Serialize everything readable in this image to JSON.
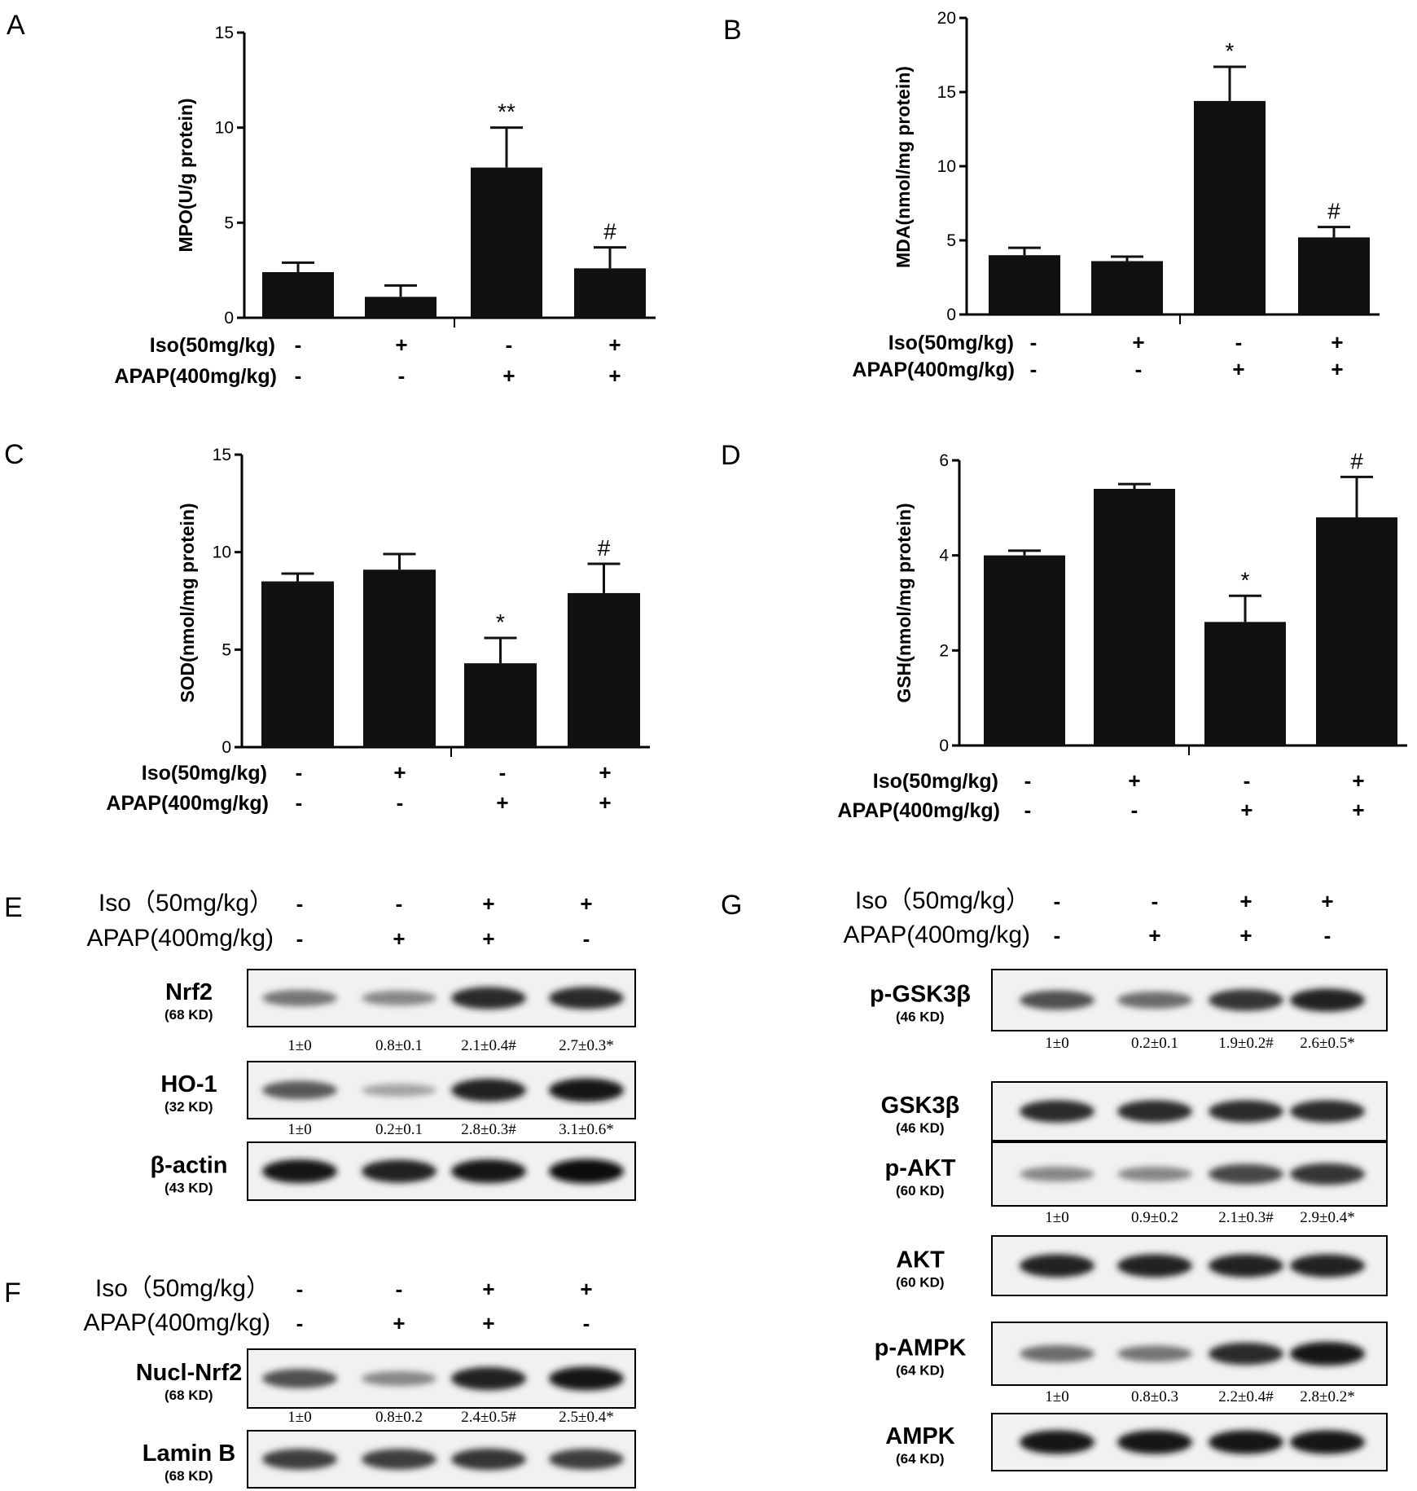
{
  "chart_data": [
    {
      "panel": "A",
      "type": "bar",
      "ylabel": "MPO(U/g protein)",
      "ylim": [
        0,
        15
      ],
      "yticks": [
        0,
        5,
        10,
        15
      ],
      "values": [
        2.4,
        1.1,
        7.9,
        2.6
      ],
      "errors": [
        0.5,
        0.6,
        2.1,
        1.1
      ],
      "sig": [
        "",
        "",
        "**",
        "#"
      ],
      "iso_label": "Iso(50mg/kg)",
      "iso": [
        "-",
        "+",
        "-",
        "+"
      ],
      "apap_label": "APAP(400mg/kg)",
      "apap": [
        "-",
        "-",
        "+",
        "+"
      ]
    },
    {
      "panel": "B",
      "type": "bar",
      "ylabel": "MDA(nmol/mg protein)",
      "ylim": [
        0,
        20
      ],
      "yticks": [
        0,
        5,
        10,
        15,
        20
      ],
      "values": [
        4.0,
        3.6,
        14.4,
        5.2
      ],
      "errors": [
        0.5,
        0.3,
        2.3,
        0.7
      ],
      "sig": [
        "",
        "",
        "*",
        "#"
      ],
      "iso_label": "Iso(50mg/kg)",
      "iso": [
        "-",
        "+",
        "-",
        "+"
      ],
      "apap_label": "APAP(400mg/kg)",
      "apap": [
        "-",
        "-",
        "+",
        "+"
      ]
    },
    {
      "panel": "C",
      "type": "bar",
      "ylabel": "SOD(nmol/mg protein)",
      "ylim": [
        0,
        15
      ],
      "yticks": [
        0,
        5,
        10,
        15
      ],
      "values": [
        8.5,
        9.1,
        4.3,
        7.9
      ],
      "errors": [
        0.4,
        0.8,
        1.3,
        1.5
      ],
      "sig": [
        "",
        "",
        "*",
        "#"
      ],
      "iso_label": "Iso(50mg/kg)",
      "iso": [
        "-",
        "+",
        "-",
        "+"
      ],
      "apap_label": "APAP(400mg/kg)",
      "apap": [
        "-",
        "-",
        "+",
        "+"
      ]
    },
    {
      "panel": "D",
      "type": "bar",
      "ylabel": "GSH(nmol/mg protein)",
      "ylim": [
        0,
        6
      ],
      "yticks": [
        0,
        2,
        4,
        6
      ],
      "values": [
        4.0,
        5.4,
        2.6,
        4.8
      ],
      "errors": [
        0.1,
        0.1,
        0.55,
        0.85
      ],
      "sig": [
        "",
        "",
        "*",
        "#"
      ],
      "iso_label": "Iso(50mg/kg)",
      "iso": [
        "-",
        "+",
        "-",
        "+"
      ],
      "apap_label": "APAP(400mg/kg)",
      "apap": [
        "-",
        "-",
        "+",
        "+"
      ]
    }
  ],
  "western_blots": [
    {
      "panel": "E",
      "iso_label": "Iso（50mg/kg）",
      "iso": [
        "-",
        "-",
        "+",
        "+"
      ],
      "apap_label": "APAP(400mg/kg)",
      "apap": [
        "-",
        "+",
        "+",
        "-"
      ],
      "blots": [
        {
          "name": "Nrf2",
          "kd": "(68 KD)",
          "values": [
            "1±0",
            "0.8±0.1",
            "2.1±0.4#",
            "2.7±0.3*"
          ],
          "intensity": [
            0.45,
            0.35,
            0.85,
            0.85
          ]
        },
        {
          "name": "HO-1",
          "kd": "(32 KD)",
          "values": [
            "1±0",
            "0.2±0.1",
            "2.8±0.3#",
            "3.1±0.6*"
          ],
          "intensity": [
            0.6,
            0.2,
            0.9,
            0.95
          ]
        },
        {
          "name": "β-actin",
          "kd": "(43 KD)",
          "values": [],
          "intensity": [
            0.95,
            0.9,
            0.95,
            1.0
          ]
        }
      ]
    },
    {
      "panel": "F",
      "iso_label": "Iso（50mg/kg）",
      "iso": [
        "-",
        "-",
        "+",
        "+"
      ],
      "apap_label": "APAP(400mg/kg)",
      "apap": [
        "-",
        "+",
        "+",
        "-"
      ],
      "blots": [
        {
          "name": "Nucl-Nrf2",
          "kd": "(68 KD)",
          "values": [
            "1±0",
            "0.8±0.2",
            "2.4±0.5#",
            "2.5±0.4*"
          ],
          "intensity": [
            0.65,
            0.35,
            0.9,
            0.95
          ]
        },
        {
          "name": "Lamin B",
          "kd": "(68 KD)",
          "values": [],
          "intensity": [
            0.75,
            0.75,
            0.8,
            0.75
          ]
        }
      ]
    },
    {
      "panel": "G",
      "iso_label": "Iso（50mg/kg）",
      "iso": [
        "-",
        "-",
        "+",
        "+"
      ],
      "apap_label": "APAP(400mg/kg)",
      "apap": [
        "-",
        "+",
        "+",
        "-"
      ],
      "blots": [
        {
          "name": "p-GSK3β",
          "kd": "(46 KD)",
          "values": [
            "1±0",
            "0.2±0.1",
            "1.9±0.2#",
            "2.6±0.5*"
          ],
          "intensity": [
            0.65,
            0.5,
            0.8,
            0.9
          ]
        },
        {
          "name": "GSK3β",
          "kd": "(46 KD)",
          "values": [],
          "intensity": [
            0.85,
            0.85,
            0.85,
            0.85
          ]
        },
        {
          "name": "p-AKT",
          "kd": "(60 KD)",
          "values": [
            "1±0",
            "0.9±0.2",
            "2.1±0.3#",
            "2.9±0.4*"
          ],
          "intensity": [
            0.35,
            0.35,
            0.7,
            0.8
          ]
        },
        {
          "name": "AKT",
          "kd": "(60 KD)",
          "values": [],
          "intensity": [
            0.9,
            0.9,
            0.9,
            0.9
          ]
        },
        {
          "name": "p-AMPK",
          "kd": "(64 KD)",
          "values": [
            "1±0",
            "0.8±0.3",
            "2.2±0.4#",
            "2.8±0.2*"
          ],
          "intensity": [
            0.5,
            0.45,
            0.85,
            0.95
          ]
        },
        {
          "name": "AMPK",
          "kd": "(64 KD)",
          "values": [],
          "intensity": [
            0.95,
            0.95,
            0.95,
            0.95
          ]
        }
      ]
    }
  ]
}
